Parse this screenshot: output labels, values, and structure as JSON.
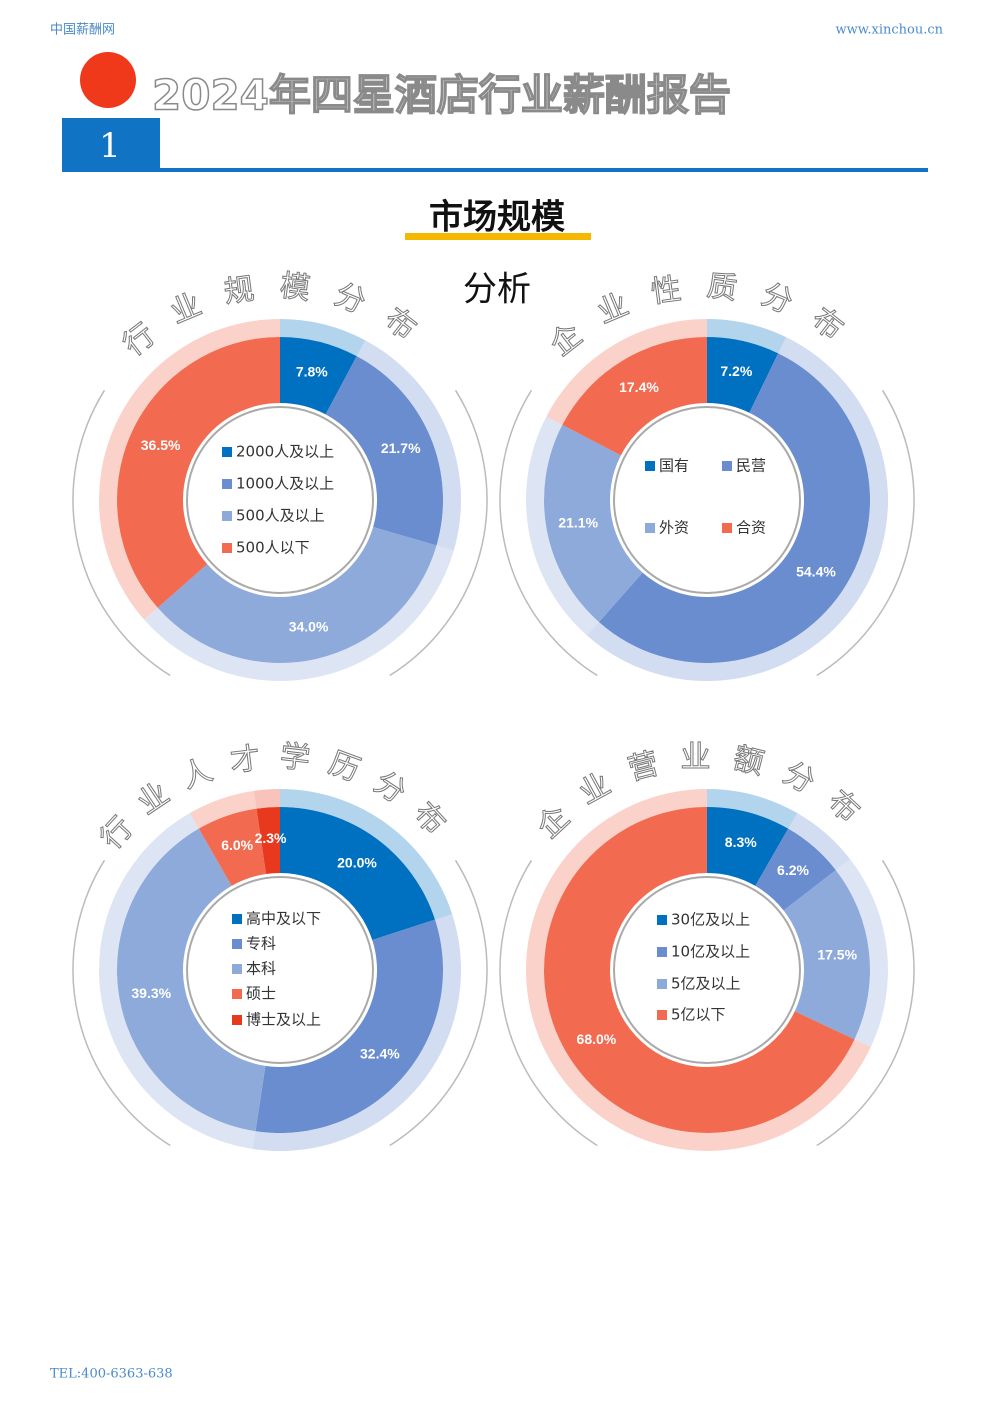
{
  "header": {
    "site": "中国薪酬网",
    "url": "www.xinchou.cn",
    "title": "2024年四星酒店行业薪酬报告",
    "section": "1"
  },
  "section_title": "市场规模",
  "section_subtitle": "分析",
  "footer": {
    "tel": "TEL:400-6363-638"
  },
  "chart_data": [
    {
      "type": "pie",
      "title": "行业规模分布",
      "categories": [
        "2000人及以上",
        "1000人及以上",
        "500人及以上",
        "500人以下"
      ],
      "values": [
        7.8,
        21.7,
        34.0,
        36.5
      ],
      "value_labels": [
        "7.8%",
        "21.7%",
        "34.0%",
        "36.5%"
      ],
      "colors": [
        "#0070c0",
        "#6a8dd0",
        "#8eaadb",
        "#f26b50"
      ]
    },
    {
      "type": "pie",
      "title": "企业性质分布",
      "categories": [
        "国有",
        "民营",
        "外资",
        "合资"
      ],
      "values": [
        7.2,
        54.4,
        21.1,
        17.4
      ],
      "value_labels": [
        "7.2%",
        "54.4%",
        "21.1%",
        "17.4%"
      ],
      "colors": [
        "#0070c0",
        "#6a8dd0",
        "#8eaadb",
        "#f26b50"
      ]
    },
    {
      "type": "pie",
      "title": "行业人才学历分布",
      "categories": [
        "高中及以下",
        "专科",
        "本科",
        "硕士",
        "博士及以上"
      ],
      "values": [
        20.0,
        32.4,
        39.3,
        6.0,
        2.3
      ],
      "value_labels": [
        "20.0%",
        "32.4%",
        "39.3%",
        "6.0%",
        "2.3%"
      ],
      "colors": [
        "#0070c0",
        "#6a8dd0",
        "#8eaadb",
        "#f26b50",
        "#e8391e"
      ]
    },
    {
      "type": "pie",
      "title": "企业营业额分布",
      "categories": [
        "30亿及以上",
        "10亿及以上",
        "5亿及以上",
        "5亿以下"
      ],
      "values": [
        8.3,
        6.2,
        17.5,
        68.0
      ],
      "value_labels": [
        "8.3%",
        "6.2%",
        "17.5%",
        "68.0%"
      ],
      "colors": [
        "#0070c0",
        "#6a8dd0",
        "#8eaadb",
        "#f26b50"
      ]
    }
  ]
}
